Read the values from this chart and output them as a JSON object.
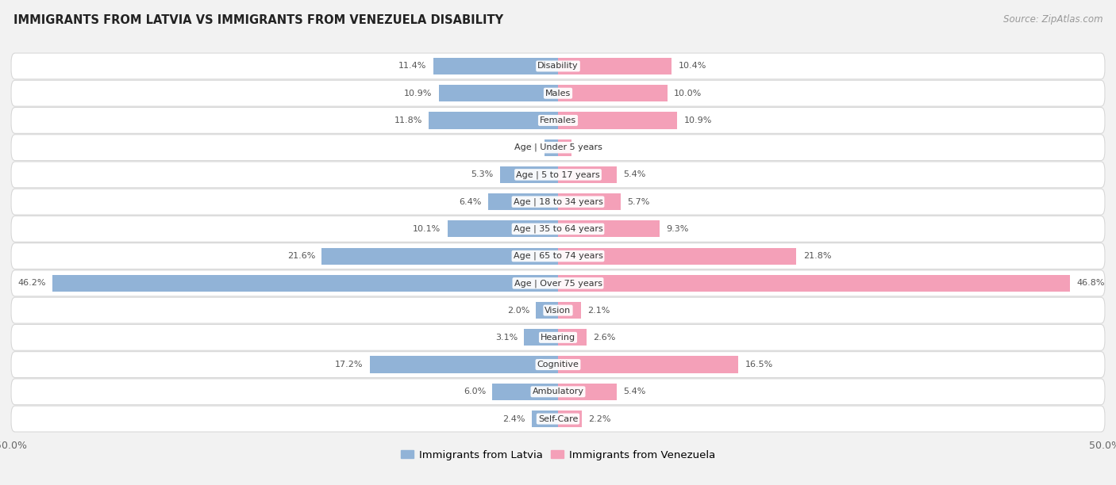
{
  "title": "IMMIGRANTS FROM LATVIA VS IMMIGRANTS FROM VENEZUELA DISABILITY",
  "source": "Source: ZipAtlas.com",
  "categories": [
    "Disability",
    "Males",
    "Females",
    "Age | Under 5 years",
    "Age | 5 to 17 years",
    "Age | 18 to 34 years",
    "Age | 35 to 64 years",
    "Age | 65 to 74 years",
    "Age | Over 75 years",
    "Vision",
    "Hearing",
    "Cognitive",
    "Ambulatory",
    "Self-Care"
  ],
  "latvia_values": [
    11.4,
    10.9,
    11.8,
    1.2,
    5.3,
    6.4,
    10.1,
    21.6,
    46.2,
    2.0,
    3.1,
    17.2,
    6.0,
    2.4
  ],
  "venezuela_values": [
    10.4,
    10.0,
    10.9,
    1.2,
    5.4,
    5.7,
    9.3,
    21.8,
    46.8,
    2.1,
    2.6,
    16.5,
    5.4,
    2.2
  ],
  "latvia_color": "#91b3d7",
  "venezuela_color": "#f4a0b8",
  "axis_max": 50.0,
  "background_color": "#f2f2f2",
  "row_bg_color": "#ffffff",
  "row_bg_color_alt": "#ebebeb",
  "bar_height": 0.62,
  "legend_labels": [
    "Immigrants from Latvia",
    "Immigrants from Venezuela"
  ]
}
